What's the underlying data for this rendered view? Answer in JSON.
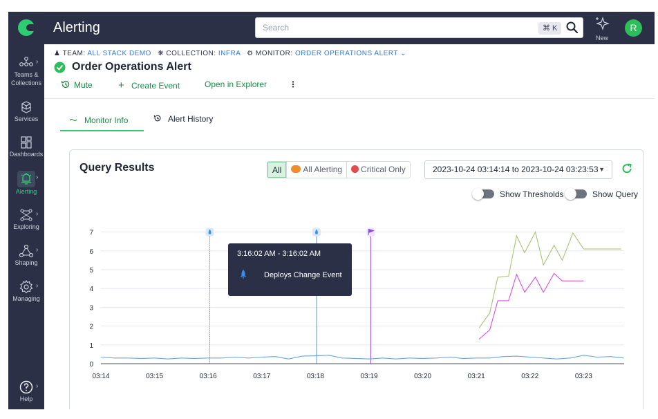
{
  "app": {
    "title": "Alerting"
  },
  "search": {
    "placeholder": "Search",
    "shortcut": "⌘ K"
  },
  "new_label": "New",
  "avatar_initial": "R",
  "sidebar": {
    "items": [
      {
        "label1": "Teams &",
        "label2": "Collections",
        "icon": "teams-icon"
      },
      {
        "label1": "Services",
        "icon": "cube-icon"
      },
      {
        "label1": "Dashboards",
        "icon": "grid-icon"
      },
      {
        "label1": "Alerting",
        "icon": "bell-icon",
        "active": true
      },
      {
        "label1": "Exploring",
        "icon": "explore-icon"
      },
      {
        "label1": "Shaping",
        "icon": "shaping-icon"
      },
      {
        "label1": "Managing",
        "icon": "gear-icon"
      },
      {
        "label1": "Help",
        "icon": "help-icon"
      }
    ]
  },
  "breadcrumb": {
    "team_key": "TEAM:",
    "team_value": "ALL STACK DEMO",
    "collection_key": "COLLECTION:",
    "collection_value": "INFRA",
    "monitor_key": "MONITOR:",
    "monitor_value": "ORDER OPERATIONS ALERT"
  },
  "page_title": "Order Operations Alert",
  "actions": {
    "mute": "Mute",
    "create_event": "Create Event",
    "open_explorer": "Open in Explorer"
  },
  "tabs": {
    "monitor_info": "Monitor Info",
    "alert_history": "Alert History"
  },
  "card": {
    "title": "Query Results",
    "filters": {
      "all": "All",
      "all_alerting": "All Alerting",
      "critical_only": "Critical Only"
    },
    "time_range": "2023-10-24 03:14:14 to 2023-10-24 03:23:53",
    "show_thresholds": "Show Thresholds",
    "show_query": "Show Query"
  },
  "colors": {
    "brand_green": "#2ecc71",
    "nav_bg": "#2b3046",
    "series_green": "#a9c27a",
    "series_magenta": "#d84fd6",
    "series_blue": "#6aa4dc",
    "marker_blue": "#5b9bd5",
    "marker_purple": "#8e44ec"
  },
  "tooltip": {
    "time": "3:16:02 AM - 3:16:02 AM",
    "event": "Deploys Change Event"
  },
  "chart_data": {
    "type": "line",
    "x_ticks": [
      "03:14",
      "03:15",
      "03:16",
      "03:17",
      "03:18",
      "03:19",
      "03:20",
      "03:21",
      "03:22",
      "03:23"
    ],
    "ylim": [
      0,
      7
    ],
    "y_ticks": [
      0,
      1,
      2,
      3,
      4,
      5,
      6,
      7
    ],
    "grid": true,
    "series": [
      {
        "color": "#6aa4dc",
        "x": [
          0,
          0.25,
          0.5,
          0.75,
          1,
          1.25,
          1.5,
          1.75,
          2,
          2.25,
          2.5,
          2.75,
          3,
          3.25,
          3.5,
          3.75,
          4,
          4.25,
          4.5,
          4.75,
          5,
          5.25,
          5.5,
          5.75,
          6,
          6.25,
          6.5,
          6.75,
          7,
          7.25,
          7.5,
          7.75,
          8,
          8.25,
          8.5,
          8.75,
          9,
          9.25,
          9.5,
          9.75
        ],
        "values": [
          0.35,
          0.3,
          0.3,
          0.28,
          0.3,
          0.25,
          0.3,
          0.28,
          0.3,
          0.3,
          0.35,
          0.3,
          0.35,
          0.38,
          0.25,
          0.4,
          0.42,
          0.45,
          0.3,
          0.28,
          0.25,
          0.3,
          0.25,
          0.3,
          0.28,
          0.3,
          0.35,
          0.28,
          0.3,
          0.3,
          0.38,
          0.4,
          0.35,
          0.3,
          0.25,
          0.3,
          0.45,
          0.35,
          0.38,
          0.3
        ]
      },
      {
        "color": "#a9c27a",
        "x": [
          7.05,
          7.25,
          7.4,
          7.6,
          7.75,
          7.9,
          8.1,
          8.25,
          8.45,
          8.6,
          8.8,
          9.0,
          9.2,
          9.45,
          9.7
        ],
        "values": [
          1.9,
          2.7,
          4.6,
          4.65,
          6.8,
          5.9,
          7.0,
          5.25,
          6.3,
          5.5,
          6.95,
          6.1,
          6.1,
          6.1,
          6.1
        ]
      },
      {
        "color": "#d84fd6",
        "x": [
          7.05,
          7.25,
          7.4,
          7.6,
          7.75,
          7.9,
          8.1,
          8.25,
          8.45,
          8.6,
          8.8,
          9.0
        ],
        "values": [
          1.3,
          1.8,
          3.35,
          3.35,
          4.75,
          3.8,
          4.6,
          3.8,
          4.8,
          4.4,
          4.4,
          4.4
        ]
      }
    ],
    "event_markers": [
      {
        "x": 2.03,
        "kind": "deploy",
        "color": "#5b9bd5"
      },
      {
        "x": 4.02,
        "kind": "deploy",
        "color": "#5b9bd5"
      },
      {
        "x": 5.03,
        "kind": "flag",
        "color": "#8e44ec"
      }
    ]
  }
}
